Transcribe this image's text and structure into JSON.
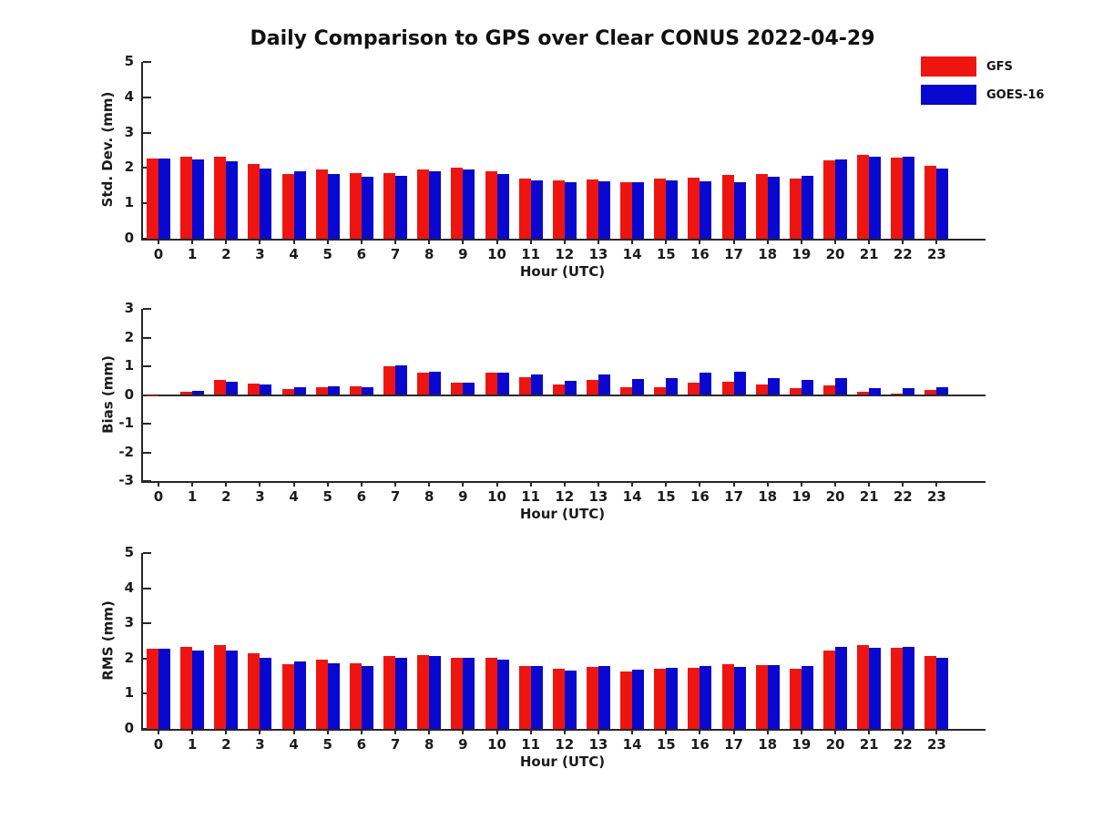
{
  "title": "Daily Comparison to GPS over Clear CONUS 2022-04-29",
  "legend": {
    "position": "top-right",
    "items": [
      {
        "label": "GFS",
        "color": "#ee1511"
      },
      {
        "label": "GOES-16",
        "color": "#0808d0"
      }
    ]
  },
  "colors": {
    "gfs": "#ee1511",
    "goes16": "#0808d0",
    "axis": "#262626",
    "text": "#1a1a1a",
    "background": "#ffffff"
  },
  "chart_data": [
    {
      "type": "bar",
      "title": "",
      "ylabel": "Std. Dev. (mm)",
      "xlabel": "Hour (UTC)",
      "ylim": [
        0,
        5
      ],
      "yticks": [
        5,
        4,
        3,
        2,
        1,
        0
      ],
      "grid": false,
      "categories": [
        "0",
        "1",
        "2",
        "3",
        "4",
        "5",
        "6",
        "7",
        "8",
        "9",
        "10",
        "11",
        "12",
        "13",
        "14",
        "15",
        "16",
        "17",
        "18",
        "19",
        "20",
        "21",
        "22",
        "23"
      ],
      "series": [
        {
          "name": "GFS",
          "values": [
            2.28,
            2.32,
            2.33,
            2.12,
            1.84,
            1.95,
            1.85,
            1.85,
            1.97,
            2.0,
            1.9,
            1.7,
            1.65,
            1.68,
            1.61,
            1.69,
            1.72,
            1.8,
            1.84,
            1.71,
            2.22,
            2.37,
            2.3,
            2.06
          ]
        },
        {
          "name": "GOES-16",
          "values": [
            2.28,
            2.25,
            2.18,
            1.98,
            1.9,
            1.83,
            1.76,
            1.78,
            1.9,
            1.97,
            1.82,
            1.65,
            1.6,
            1.63,
            1.61,
            1.65,
            1.62,
            1.61,
            1.74,
            1.77,
            2.24,
            2.32,
            2.33,
            1.98
          ]
        }
      ]
    },
    {
      "type": "bar",
      "title": "",
      "ylabel": "Bias (mm)",
      "xlabel": "Hour (UTC)",
      "ylim": [
        -3,
        3
      ],
      "yticks": [
        3,
        2,
        1,
        0,
        -1,
        -2,
        -3
      ],
      "grid": false,
      "categories": [
        "0",
        "1",
        "2",
        "3",
        "4",
        "5",
        "6",
        "7",
        "8",
        "9",
        "10",
        "11",
        "12",
        "13",
        "14",
        "15",
        "16",
        "17",
        "18",
        "19",
        "20",
        "21",
        "22",
        "23"
      ],
      "series": [
        {
          "name": "GFS",
          "values": [
            -0.04,
            0.11,
            0.53,
            0.41,
            0.2,
            0.27,
            0.31,
            1.01,
            0.79,
            0.44,
            0.77,
            0.63,
            0.37,
            0.53,
            0.26,
            0.27,
            0.42,
            0.45,
            0.35,
            0.24,
            0.32,
            0.12,
            0.05,
            0.17
          ]
        },
        {
          "name": "GOES-16",
          "values": [
            0.0,
            0.14,
            0.45,
            0.35,
            0.26,
            0.31,
            0.27,
            1.04,
            0.8,
            0.44,
            0.77,
            0.7,
            0.48,
            0.73,
            0.56,
            0.6,
            0.77,
            0.8,
            0.6,
            0.52,
            0.6,
            0.25,
            0.24,
            0.28
          ]
        }
      ]
    },
    {
      "type": "bar",
      "title": "",
      "ylabel": "RMS (mm)",
      "xlabel": "Hour (UTC)",
      "ylim": [
        0,
        5
      ],
      "yticks": [
        5,
        4,
        3,
        2,
        1,
        0
      ],
      "grid": false,
      "categories": [
        "0",
        "1",
        "2",
        "3",
        "4",
        "5",
        "6",
        "7",
        "8",
        "9",
        "10",
        "11",
        "12",
        "13",
        "14",
        "15",
        "16",
        "17",
        "18",
        "19",
        "20",
        "21",
        "22",
        "23"
      ],
      "series": [
        {
          "name": "GFS",
          "values": [
            2.28,
            2.33,
            2.38,
            2.14,
            1.85,
            1.97,
            1.86,
            2.08,
            2.11,
            2.03,
            2.02,
            1.8,
            1.71,
            1.77,
            1.62,
            1.71,
            1.74,
            1.85,
            1.82,
            1.72,
            2.24,
            2.39,
            2.31,
            2.07
          ]
        },
        {
          "name": "GOES-16",
          "values": [
            2.28,
            2.24,
            2.24,
            2.01,
            1.93,
            1.87,
            1.78,
            2.03,
            2.06,
            2.03,
            1.97,
            1.78,
            1.66,
            1.78,
            1.68,
            1.74,
            1.79,
            1.77,
            1.82,
            1.8,
            2.33,
            2.31,
            2.33,
            2.01
          ]
        }
      ]
    }
  ]
}
